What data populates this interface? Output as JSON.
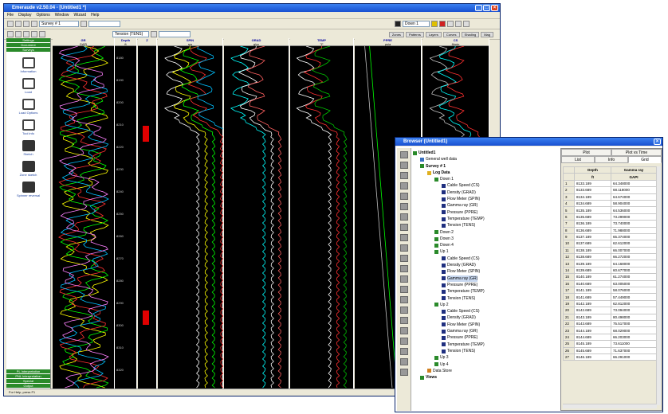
{
  "main": {
    "title": "Emeraude v2.50.04 - [Untitled1 *]",
    "menu": [
      "File",
      "Display",
      "Options",
      "Window",
      "Wizard",
      "Help"
    ],
    "survey_select": "Survey # 1",
    "track_select": "Tension (TENS)",
    "down_select": "Down 1",
    "hide_buttons": [
      "Zones",
      "Patterns",
      "Layers",
      "Curves",
      "Shading",
      "Mag"
    ],
    "sidebar_top": [
      "Settings",
      "Document",
      "Surveys"
    ],
    "sidebar_items": [
      "Information",
      "Load",
      "Load Options",
      "Tool info",
      "Sketch",
      "Zone sketch",
      "Spinner reversal"
    ],
    "sidebar_bottom": [
      "PL Interpretation",
      "PNL Interpretation",
      "Special",
      "Output"
    ],
    "status": "For Help, press F1"
  },
  "tracks": [
    {
      "name": "GR",
      "unit": "GAPI"
    },
    {
      "name": "Depth",
      "unit": "ft"
    },
    {
      "name": "Z",
      "unit": ""
    },
    {
      "name": "SPIN",
      "unit": "rps"
    },
    {
      "name": "GRAD",
      "unit": "g/cc"
    },
    {
      "name": "TEMP",
      "unit": "°F"
    },
    {
      "name": "PPRE",
      "unit": "psia"
    },
    {
      "name": "CS",
      "unit": "ft/min"
    }
  ],
  "depth_labels": [
    "8180",
    "8190",
    "8200",
    "8210",
    "8220",
    "8230",
    "8240",
    "8250",
    "8260",
    "8270",
    "8280",
    "8290",
    "8300",
    "8310",
    "8320"
  ],
  "browser": {
    "title": "Browser (Untitled1)",
    "tree": [
      {
        "label": "Untitled1",
        "level": 0,
        "kind": "root"
      },
      {
        "label": "General well data",
        "level": 1,
        "kind": "doc"
      },
      {
        "label": "Survey # 1",
        "level": 1,
        "kind": "survey"
      },
      {
        "label": "Log Data",
        "level": 2,
        "kind": "folder"
      },
      {
        "label": "Down 1",
        "level": 3,
        "kind": "pass"
      },
      {
        "label": "Cable Speed (CS)",
        "level": 4,
        "kind": "chan"
      },
      {
        "label": "Density (GRAD)",
        "level": 4,
        "kind": "chan"
      },
      {
        "label": "Flow Meter (SPIN)",
        "level": 4,
        "kind": "chan"
      },
      {
        "label": "Gamma ray (GR)",
        "level": 4,
        "kind": "chan"
      },
      {
        "label": "Pressure (PPRE)",
        "level": 4,
        "kind": "chan"
      },
      {
        "label": "Temperature (TEMP)",
        "level": 4,
        "kind": "chan"
      },
      {
        "label": "Tension (TENS)",
        "level": 4,
        "kind": "chan"
      },
      {
        "label": "Down 2",
        "level": 3,
        "kind": "pass"
      },
      {
        "label": "Down 3",
        "level": 3,
        "kind": "pass"
      },
      {
        "label": "Down 4",
        "level": 3,
        "kind": "pass"
      },
      {
        "label": "Up 1",
        "level": 3,
        "kind": "pass"
      },
      {
        "label": "Cable Speed (CS)",
        "level": 4,
        "kind": "chan"
      },
      {
        "label": "Density (GRAD)",
        "level": 4,
        "kind": "chan"
      },
      {
        "label": "Flow Meter (SPIN)",
        "level": 4,
        "kind": "chan"
      },
      {
        "label": "Gamma ray (GR)",
        "level": 4,
        "kind": "chan",
        "selected": true
      },
      {
        "label": "Pressure (PPRE)",
        "level": 4,
        "kind": "chan"
      },
      {
        "label": "Temperature (TEMP)",
        "level": 4,
        "kind": "chan"
      },
      {
        "label": "Tension (TENS)",
        "level": 4,
        "kind": "chan"
      },
      {
        "label": "Up 2",
        "level": 3,
        "kind": "pass"
      },
      {
        "label": "Cable Speed (CS)",
        "level": 4,
        "kind": "chan"
      },
      {
        "label": "Density (GRAD)",
        "level": 4,
        "kind": "chan"
      },
      {
        "label": "Flow Meter (SPIN)",
        "level": 4,
        "kind": "chan"
      },
      {
        "label": "Gamma ray (GR)",
        "level": 4,
        "kind": "chan"
      },
      {
        "label": "Pressure (PPRE)",
        "level": 4,
        "kind": "chan"
      },
      {
        "label": "Temperature (TEMP)",
        "level": 4,
        "kind": "chan"
      },
      {
        "label": "Tension (TENS)",
        "level": 4,
        "kind": "chan"
      },
      {
        "label": "Up 3",
        "level": 3,
        "kind": "pass"
      },
      {
        "label": "Up 4",
        "level": 3,
        "kind": "pass"
      },
      {
        "label": "Data Store",
        "level": 2,
        "kind": "store"
      },
      {
        "label": "Views",
        "level": 1,
        "kind": "pass"
      }
    ],
    "tabs_row1": [
      "Plot",
      "Plot vs Time"
    ],
    "tabs_row2": [
      "List",
      "Info",
      "Grid"
    ],
    "grid_headers": [
      "Depth",
      "Gamma ray"
    ],
    "grid_units": [
      "ft",
      "GAPI"
    ],
    "grid_rows": [
      [
        "8133.189",
        "64.348000"
      ],
      [
        "8133.689",
        "68.118000"
      ],
      [
        "8134.189",
        "64.674000"
      ],
      [
        "8134.689",
        "58.904000"
      ],
      [
        "8135.189",
        "64.536000"
      ],
      [
        "8135.689",
        "73.299000"
      ],
      [
        "8136.189",
        "73.740000"
      ],
      [
        "8136.689",
        "71.988000"
      ],
      [
        "8137.189",
        "65.374000"
      ],
      [
        "8137.689",
        "62.612000"
      ],
      [
        "8138.189",
        "66.007000"
      ],
      [
        "8138.689",
        "66.272000"
      ],
      [
        "8139.189",
        "64.168000"
      ],
      [
        "8139.689",
        "60.677000"
      ],
      [
        "8140.189",
        "61.274000"
      ],
      [
        "8140.689",
        "63.005000"
      ],
      [
        "8141.189",
        "58.076000"
      ],
      [
        "8141.689",
        "57.449000"
      ],
      [
        "8142.189",
        "62.812000"
      ],
      [
        "8142.689",
        "73.094000"
      ],
      [
        "8143.189",
        "80.498000"
      ],
      [
        "8143.689",
        "75.517000"
      ],
      [
        "8144.189",
        "68.029000"
      ],
      [
        "8144.689",
        "66.203000"
      ],
      [
        "8145.189",
        "73.611000"
      ],
      [
        "8145.689",
        "71.637000"
      ],
      [
        "8146.189",
        "66.291000"
      ]
    ]
  }
}
